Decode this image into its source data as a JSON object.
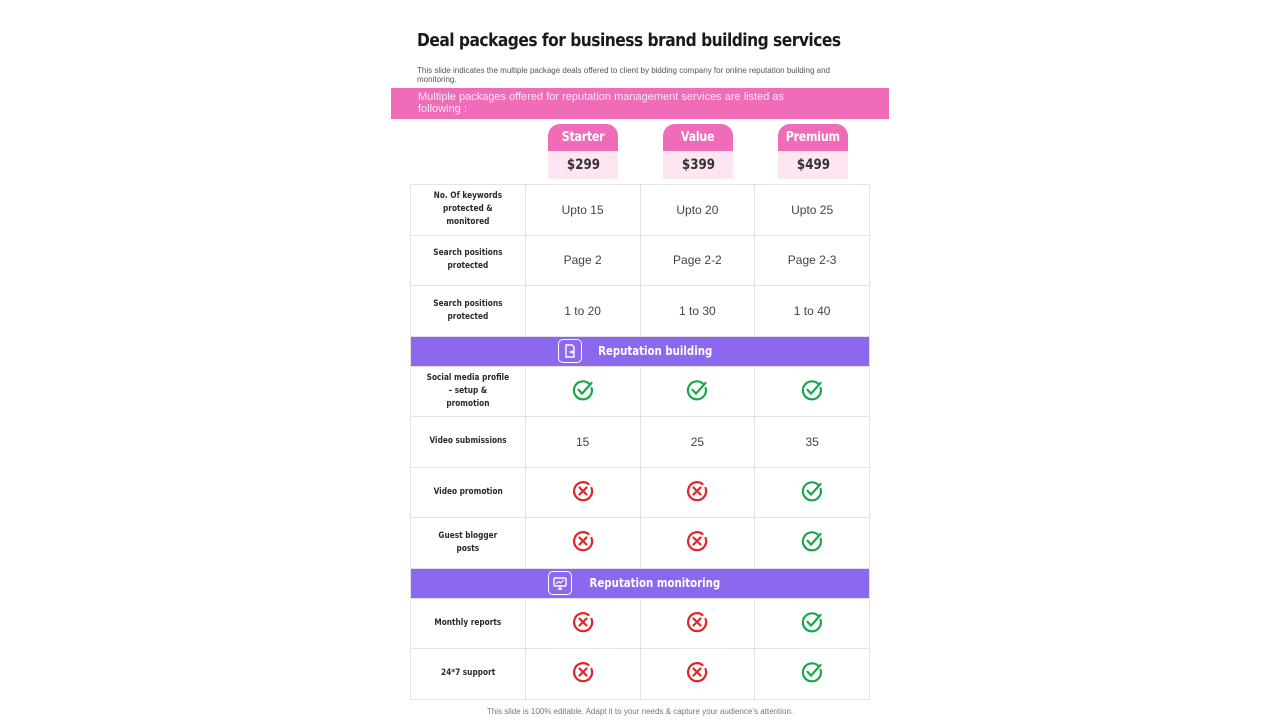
{
  "title": "Deal packages for business brand building services",
  "subtitle": "This slide indicates the multiple package deals offered to client by bidding company for online reputation building and monitoring.",
  "banner": "Multiple packages offered for reputation management services are listed as following :",
  "packages": [
    {
      "name": "Starter",
      "price": "$299"
    },
    {
      "name": "Value",
      "price": "$399"
    },
    {
      "name": "Premium",
      "price": "$499"
    }
  ],
  "rows_top": [
    {
      "label": "No. Of keywords protected & monitored",
      "values": [
        "Upto 15",
        "Upto 20",
        "Upto 25"
      ]
    },
    {
      "label": "Search positions protected",
      "values": [
        "Page 2",
        "Page 2-2",
        "Page 2-3"
      ]
    },
    {
      "label": "Search positions protected",
      "values": [
        "1 to 20",
        "1 to 30",
        "1 to 40"
      ]
    }
  ],
  "section_building": {
    "title": "Reputation building",
    "icon": "document-share-icon"
  },
  "rows_building": [
    {
      "label": "Social media profile – setup & promotion",
      "values": [
        "check",
        "check",
        "check"
      ]
    },
    {
      "label": "Video submissions",
      "values": [
        "15",
        "25",
        "35"
      ]
    },
    {
      "label": "Video promotion",
      "values": [
        "cross",
        "cross",
        "check"
      ]
    },
    {
      "label": "Guest blogger posts",
      "values": [
        "cross",
        "cross",
        "check"
      ]
    }
  ],
  "section_monitoring": {
    "title": "Reputation monitoring",
    "icon": "monitor-icon"
  },
  "rows_monitoring": [
    {
      "label": "Monthly reports",
      "values": [
        "cross",
        "cross",
        "check"
      ]
    },
    {
      "label": "24*7 support",
      "values": [
        "cross",
        "cross",
        "check"
      ]
    }
  ],
  "footer": "This slide is 100% editable. Adapt it to your needs & capture your audience’s attention.",
  "colors": {
    "pink": "#f06bb8",
    "pink_light": "#fde6f1",
    "purple": "#8b68ee",
    "check": "#1aa64a",
    "cross": "#e0262b"
  }
}
